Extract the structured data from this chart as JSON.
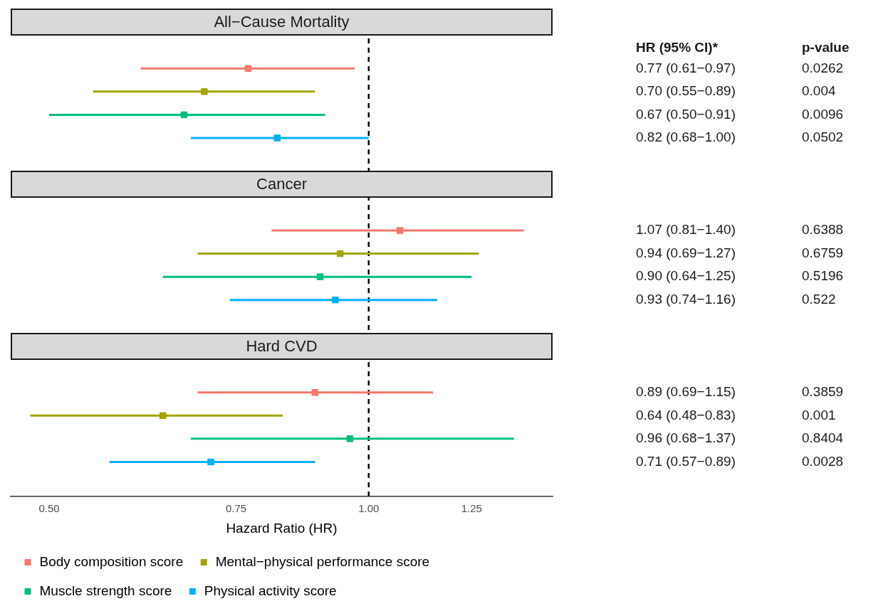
{
  "chart_data": {
    "type": "scatter",
    "xlabel": "Hazard Ratio (HR)",
    "categories": [
      null,
      null,
      null,
      null,
      null,
      null,
      null,
      null,
      null,
      null,
      null,
      null,
      null,
      null,
      null,
      null,
      null,
      null,
      null,
      null,
      null
    ],
    "orientation": "horizontal",
    "log": "x",
    "xlim": [
      0.46,
      1.49
    ],
    "xticks": [
      {
        "value": 0.5,
        "label": "0.50"
      },
      {
        "value": 0.75,
        "label": "0.75"
      },
      {
        "value": 1,
        "label": "1.00"
      },
      {
        "value": 1.25,
        "label": "1.25"
      }
    ],
    "marker": "square",
    "legend": "bottom",
    "ref_lines": [
      {
        "axis": "x",
        "value": 1,
        "line_style": "dashed",
        "color": "#000000"
      }
    ],
    "annotations": [
      "All−Cause Mortality",
      "HR (95% CI)*",
      "p-value",
      "0.77 (0.61−0.97)",
      "0.0262",
      "0.70 (0.55−0.89)",
      "0.004",
      "0.67 (0.50−0.91)",
      "0.0096",
      "0.82 (0.68−1.00)",
      "0.0502",
      "Cancer",
      "1.07 (0.81−1.40)",
      "0.6388",
      "0.94 (0.69−1.27)",
      "0.6759",
      "0.90 (0.64−1.25)",
      "0.5196",
      "0.93 (0.74−1.16)",
      "0.522",
      "Hard CVD",
      "0.89 (0.69−1.15)",
      "0.3859",
      "0.64 (0.48−0.83)",
      "0.001",
      "0.96 (0.68−1.37)",
      "0.8404",
      "0.71 (0.57−0.89)",
      "0.0028"
    ],
    "series": [
      {
        "name": "Body composition score",
        "color": "#f8766d",
        "values": [
          null,
          null,
          0.77,
          null,
          null,
          null,
          null,
          null,
          null,
          1.07,
          null,
          null,
          null,
          null,
          null,
          null,
          0.89,
          null,
          null,
          null,
          null
        ],
        "errors": [
          null,
          null,
          [
            0.61,
            0.97
          ],
          null,
          null,
          null,
          null,
          null,
          null,
          [
            0.81,
            1.4
          ],
          null,
          null,
          null,
          null,
          null,
          null,
          [
            0.69,
            1.15
          ],
          null,
          null,
          null,
          null
        ]
      },
      {
        "name": "Mental−physical performance score",
        "color": "#a3a500",
        "values": [
          null,
          null,
          null,
          0.7,
          null,
          null,
          null,
          null,
          null,
          null,
          0.94,
          null,
          null,
          null,
          null,
          null,
          null,
          0.64,
          null,
          null,
          null
        ],
        "errors": [
          null,
          null,
          null,
          [
            0.55,
            0.89
          ],
          null,
          null,
          null,
          null,
          null,
          null,
          [
            0.69,
            1.27
          ],
          null,
          null,
          null,
          null,
          null,
          null,
          [
            0.48,
            0.83
          ],
          null,
          null,
          null
        ]
      },
      {
        "name": "Muscle strength score",
        "color": "#00bf7d",
        "values": [
          null,
          null,
          null,
          null,
          0.67,
          null,
          null,
          null,
          null,
          null,
          null,
          0.9,
          null,
          null,
          null,
          null,
          null,
          null,
          0.96,
          null,
          null
        ],
        "errors": [
          null,
          null,
          null,
          null,
          [
            0.5,
            0.91
          ],
          null,
          null,
          null,
          null,
          null,
          null,
          [
            0.64,
            1.25
          ],
          null,
          null,
          null,
          null,
          null,
          null,
          [
            0.68,
            1.37
          ],
          null,
          null
        ]
      },
      {
        "name": "Physical activity score",
        "color": "#00b0f6",
        "values": [
          null,
          null,
          null,
          null,
          null,
          0.82,
          null,
          null,
          null,
          null,
          null,
          null,
          0.93,
          null,
          null,
          null,
          null,
          null,
          null,
          0.71,
          null
        ],
        "errors": [
          null,
          null,
          null,
          null,
          null,
          [
            0.68,
            1.0
          ],
          null,
          null,
          null,
          null,
          null,
          null,
          [
            0.74,
            1.16
          ],
          null,
          null,
          null,
          null,
          null,
          null,
          [
            0.57,
            0.89
          ],
          null
        ]
      }
    ]
  }
}
